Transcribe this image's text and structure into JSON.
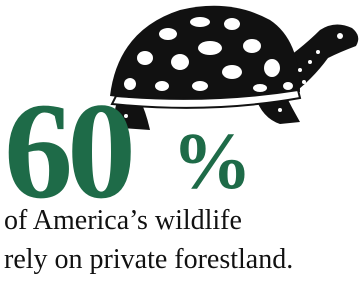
{
  "stat": {
    "figure": "60",
    "symbol": "%"
  },
  "caption": [
    "of America’s wildlife",
    "rely on private forestland."
  ]
}
